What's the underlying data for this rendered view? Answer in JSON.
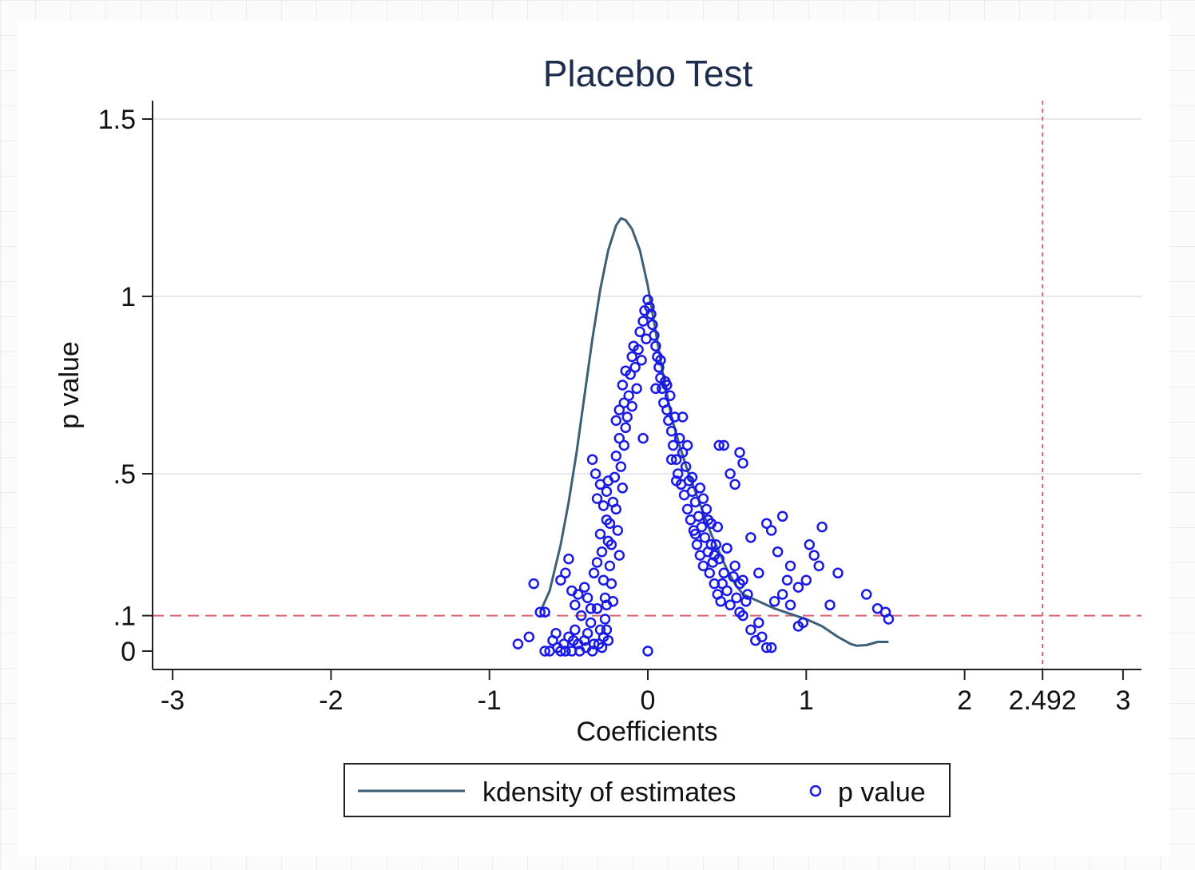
{
  "chart_data": {
    "type": "scatter",
    "title": "Placebo Test",
    "xlabel": "Coefficients",
    "ylabel": "p value",
    "xlim": [
      -3.1,
      3.1
    ],
    "ylim": [
      -0.05,
      1.55
    ],
    "x_ticks": [
      {
        "value": -3,
        "label": "-3"
      },
      {
        "value": -2,
        "label": "-2"
      },
      {
        "value": -1,
        "label": "-1"
      },
      {
        "value": 0,
        "label": "0"
      },
      {
        "value": 1,
        "label": "1"
      },
      {
        "value": 2,
        "label": "2"
      },
      {
        "value": 2.492,
        "label": "2.492"
      },
      {
        "value": 3,
        "label": "3"
      }
    ],
    "y_ticks": [
      {
        "value": 0,
        "label": "0"
      },
      {
        "value": 0.1,
        "label": ".1"
      },
      {
        "value": 0.5,
        "label": ".5"
      },
      {
        "value": 1,
        "label": "1"
      },
      {
        "value": 1.5,
        "label": "1.5"
      }
    ],
    "grid": true,
    "reference_lines": [
      {
        "axis": "y",
        "value": 0.1,
        "color": "#d9646e",
        "style": "dashed"
      },
      {
        "axis": "x",
        "value": 2.492,
        "color": "#d9646e",
        "style": "dashed"
      }
    ],
    "legend": {
      "position": "bottom",
      "entries": [
        "kdensity of estimates",
        "p value"
      ]
    },
    "colors": {
      "kdensity": "#3d5f78",
      "points": "#1a1ae6",
      "reference": "#d9646e",
      "title": "#1e2d4e"
    },
    "series": [
      {
        "name": "kdensity of estimates",
        "kind": "line",
        "points": [
          [
            -0.68,
            0.11
          ],
          [
            -0.62,
            0.17
          ],
          [
            -0.55,
            0.3
          ],
          [
            -0.5,
            0.42
          ],
          [
            -0.45,
            0.56
          ],
          [
            -0.4,
            0.72
          ],
          [
            -0.35,
            0.88
          ],
          [
            -0.3,
            1.02
          ],
          [
            -0.25,
            1.13
          ],
          [
            -0.2,
            1.2
          ],
          [
            -0.17,
            1.22
          ],
          [
            -0.14,
            1.215
          ],
          [
            -0.1,
            1.19
          ],
          [
            -0.05,
            1.13
          ],
          [
            0,
            1.03
          ],
          [
            0.05,
            0.9
          ],
          [
            0.1,
            0.77
          ],
          [
            0.15,
            0.66
          ],
          [
            0.2,
            0.58
          ],
          [
            0.25,
            0.51
          ],
          [
            0.3,
            0.45
          ],
          [
            0.35,
            0.39
          ],
          [
            0.4,
            0.33
          ],
          [
            0.45,
            0.28
          ],
          [
            0.5,
            0.23
          ],
          [
            0.55,
            0.19
          ],
          [
            0.6,
            0.16
          ],
          [
            0.7,
            0.14
          ],
          [
            0.8,
            0.12
          ],
          [
            0.9,
            0.105
          ],
          [
            1.0,
            0.09
          ],
          [
            1.1,
            0.07
          ],
          [
            1.2,
            0.04
          ],
          [
            1.28,
            0.02
          ],
          [
            1.32,
            0.015
          ],
          [
            1.38,
            0.017
          ],
          [
            1.45,
            0.026
          ],
          [
            1.52,
            0.026
          ]
        ]
      },
      {
        "name": "p value",
        "kind": "scatter",
        "points": [
          [
            -0.82,
            0.02
          ],
          [
            -0.75,
            0.04
          ],
          [
            -0.72,
            0.19
          ],
          [
            -0.68,
            0.11
          ],
          [
            -0.65,
            0.11
          ],
          [
            -0.65,
            0.0
          ],
          [
            -0.6,
            0.03
          ],
          [
            -0.57,
            0.01
          ],
          [
            -0.55,
            0.0
          ],
          [
            -0.53,
            0.02
          ],
          [
            -0.5,
            0.04
          ],
          [
            -0.48,
            0.0
          ],
          [
            -0.46,
            0.06
          ],
          [
            -0.44,
            0.02
          ],
          [
            -0.42,
            0.1
          ],
          [
            -0.4,
            0.03
          ],
          [
            -0.38,
            0.05
          ],
          [
            -0.36,
            0.08
          ],
          [
            -0.34,
            0.02
          ],
          [
            -0.32,
            0.12
          ],
          [
            -0.3,
            0.06
          ],
          [
            -0.28,
            0.04
          ],
          [
            -0.27,
            0.09
          ],
          [
            -0.26,
            0.13
          ],
          [
            -0.25,
            0.03
          ],
          [
            -0.62,
            0.0
          ],
          [
            -0.58,
            0.05
          ],
          [
            -0.52,
            0.0
          ],
          [
            -0.47,
            0.03
          ],
          [
            -0.43,
            0.0
          ],
          [
            -0.39,
            0.01
          ],
          [
            -0.35,
            0.0
          ],
          [
            -0.31,
            0.02
          ],
          [
            -0.29,
            0.01
          ],
          [
            -0.26,
            0.06
          ],
          [
            -0.55,
            0.2
          ],
          [
            -0.52,
            0.22
          ],
          [
            -0.5,
            0.26
          ],
          [
            -0.48,
            0.17
          ],
          [
            -0.46,
            0.13
          ],
          [
            -0.44,
            0.16
          ],
          [
            -0.4,
            0.18
          ],
          [
            -0.38,
            0.15
          ],
          [
            -0.36,
            0.12
          ],
          [
            -0.34,
            0.22
          ],
          [
            -0.32,
            0.25
          ],
          [
            -0.3,
            0.33
          ],
          [
            -0.29,
            0.28
          ],
          [
            -0.28,
            0.2
          ],
          [
            -0.27,
            0.15
          ],
          [
            -0.26,
            0.37
          ],
          [
            -0.25,
            0.31
          ],
          [
            -0.24,
            0.24
          ],
          [
            -0.23,
            0.19
          ],
          [
            -0.22,
            0.14
          ],
          [
            -0.35,
            0.54
          ],
          [
            -0.33,
            0.5
          ],
          [
            -0.32,
            0.43
          ],
          [
            -0.3,
            0.47
          ],
          [
            -0.28,
            0.41
          ],
          [
            -0.26,
            0.45
          ],
          [
            -0.25,
            0.48
          ],
          [
            -0.24,
            0.36
          ],
          [
            -0.23,
            0.3
          ],
          [
            -0.22,
            0.42
          ],
          [
            -0.21,
            0.49
          ],
          [
            -0.2,
            0.55
          ],
          [
            -0.2,
            0.4
          ],
          [
            -0.19,
            0.34
          ],
          [
            -0.18,
            0.27
          ],
          [
            -0.18,
            0.6
          ],
          [
            -0.17,
            0.52
          ],
          [
            -0.16,
            0.46
          ],
          [
            -0.15,
            0.58
          ],
          [
            -0.14,
            0.63
          ],
          [
            -0.2,
            0.65
          ],
          [
            -0.18,
            0.68
          ],
          [
            -0.16,
            0.75
          ],
          [
            -0.15,
            0.7
          ],
          [
            -0.14,
            0.79
          ],
          [
            -0.13,
            0.66
          ],
          [
            -0.12,
            0.72
          ],
          [
            -0.11,
            0.78
          ],
          [
            -0.1,
            0.83
          ],
          [
            -0.1,
            0.69
          ],
          [
            -0.09,
            0.86
          ],
          [
            -0.08,
            0.8
          ],
          [
            -0.07,
            0.74
          ],
          [
            -0.06,
            0.85
          ],
          [
            -0.05,
            0.9
          ],
          [
            -0.04,
            0.82
          ],
          [
            -0.03,
            0.93
          ],
          [
            -0.02,
            0.96
          ],
          [
            -0.01,
            0.88
          ],
          [
            0.0,
            0.99
          ],
          [
            0.01,
            0.97
          ],
          [
            0.02,
            0.95
          ],
          [
            0.03,
            0.92
          ],
          [
            0.04,
            0.89
          ],
          [
            0.05,
            0.86
          ],
          [
            0.06,
            0.83
          ],
          [
            0.07,
            0.8
          ],
          [
            0.08,
            0.77
          ],
          [
            0.09,
            0.74
          ],
          [
            0.1,
            0.7
          ],
          [
            0.11,
            0.76
          ],
          [
            0.12,
            0.68
          ],
          [
            0.13,
            0.65
          ],
          [
            0.14,
            0.72
          ],
          [
            0.15,
            0.62
          ],
          [
            0.16,
            0.58
          ],
          [
            0.17,
            0.66
          ],
          [
            0.18,
            0.54
          ],
          [
            0.19,
            0.5
          ],
          [
            0.2,
            0.6
          ],
          [
            0.21,
            0.47
          ],
          [
            0.22,
            0.56
          ],
          [
            0.23,
            0.44
          ],
          [
            0.24,
            0.52
          ],
          [
            0.25,
            0.4
          ],
          [
            0.26,
            0.48
          ],
          [
            0.27,
            0.37
          ],
          [
            0.28,
            0.45
          ],
          [
            0.29,
            0.34
          ],
          [
            0.3,
            0.42
          ],
          [
            0.31,
            0.3
          ],
          [
            0.32,
            0.38
          ],
          [
            0.33,
            0.27
          ],
          [
            0.34,
            0.35
          ],
          [
            0.35,
            0.24
          ],
          [
            0.36,
            0.32
          ],
          [
            0.37,
            0.4
          ],
          [
            0.38,
            0.28
          ],
          [
            0.39,
            0.22
          ],
          [
            0.4,
            0.36
          ],
          [
            0.41,
            0.25
          ],
          [
            0.42,
            0.19
          ],
          [
            0.43,
            0.3
          ],
          [
            0.44,
            0.16
          ],
          [
            0.45,
            0.26
          ],
          [
            0.46,
            0.14
          ],
          [
            0.48,
            0.22
          ],
          [
            0.5,
            0.29
          ],
          [
            0.52,
            0.13
          ],
          [
            0.54,
            0.21
          ],
          [
            0.56,
            0.15
          ],
          [
            0.58,
            0.11
          ],
          [
            0.6,
            0.2
          ],
          [
            0.62,
            0.14
          ],
          [
            0.65,
            0.06
          ],
          [
            0.68,
            0.03
          ],
          [
            0.7,
            0.22
          ],
          [
            0.75,
            0.01
          ],
          [
            0.78,
            0.01
          ],
          [
            0.8,
            0.14
          ],
          [
            0.85,
            0.16
          ],
          [
            0.88,
            0.2
          ],
          [
            0.9,
            0.13
          ],
          [
            0.95,
            0.07
          ],
          [
            1.0,
            0.2
          ],
          [
            1.05,
            0.27
          ],
          [
            1.08,
            0.24
          ],
          [
            1.1,
            0.35
          ],
          [
            1.15,
            0.13
          ],
          [
            1.2,
            0.22
          ],
          [
            1.38,
            0.16
          ],
          [
            1.45,
            0.12
          ],
          [
            1.5,
            0.11
          ],
          [
            1.52,
            0.09
          ],
          [
            0.45,
            0.58
          ],
          [
            0.48,
            0.58
          ],
          [
            0.52,
            0.5
          ],
          [
            0.55,
            0.47
          ],
          [
            0.58,
            0.56
          ],
          [
            0.6,
            0.53
          ],
          [
            0.65,
            0.32
          ],
          [
            0.75,
            0.36
          ],
          [
            0.78,
            0.34
          ],
          [
            0.82,
            0.28
          ],
          [
            0.85,
            0.38
          ],
          [
            0.9,
            0.24
          ],
          [
            0.95,
            0.18
          ],
          [
            0.98,
            0.08
          ],
          [
            1.02,
            0.3
          ],
          [
            0.0,
            0.0
          ],
          [
            -0.03,
            0.6
          ],
          [
            0.05,
            0.74
          ],
          [
            0.08,
            0.82
          ],
          [
            0.12,
            0.75
          ],
          [
            0.15,
            0.54
          ],
          [
            0.18,
            0.48
          ],
          [
            0.22,
            0.66
          ],
          [
            0.25,
            0.58
          ],
          [
            0.28,
            0.49
          ],
          [
            0.3,
            0.33
          ],
          [
            0.33,
            0.46
          ],
          [
            0.35,
            0.43
          ],
          [
            0.38,
            0.37
          ],
          [
            0.4,
            0.3
          ],
          [
            0.42,
            0.27
          ],
          [
            0.44,
            0.35
          ],
          [
            0.47,
            0.19
          ],
          [
            0.5,
            0.17
          ],
          [
            0.55,
            0.24
          ],
          [
            0.58,
            0.19
          ],
          [
            0.6,
            0.1
          ],
          [
            0.63,
            0.16
          ],
          [
            0.7,
            0.08
          ],
          [
            0.72,
            0.04
          ]
        ]
      }
    ]
  }
}
